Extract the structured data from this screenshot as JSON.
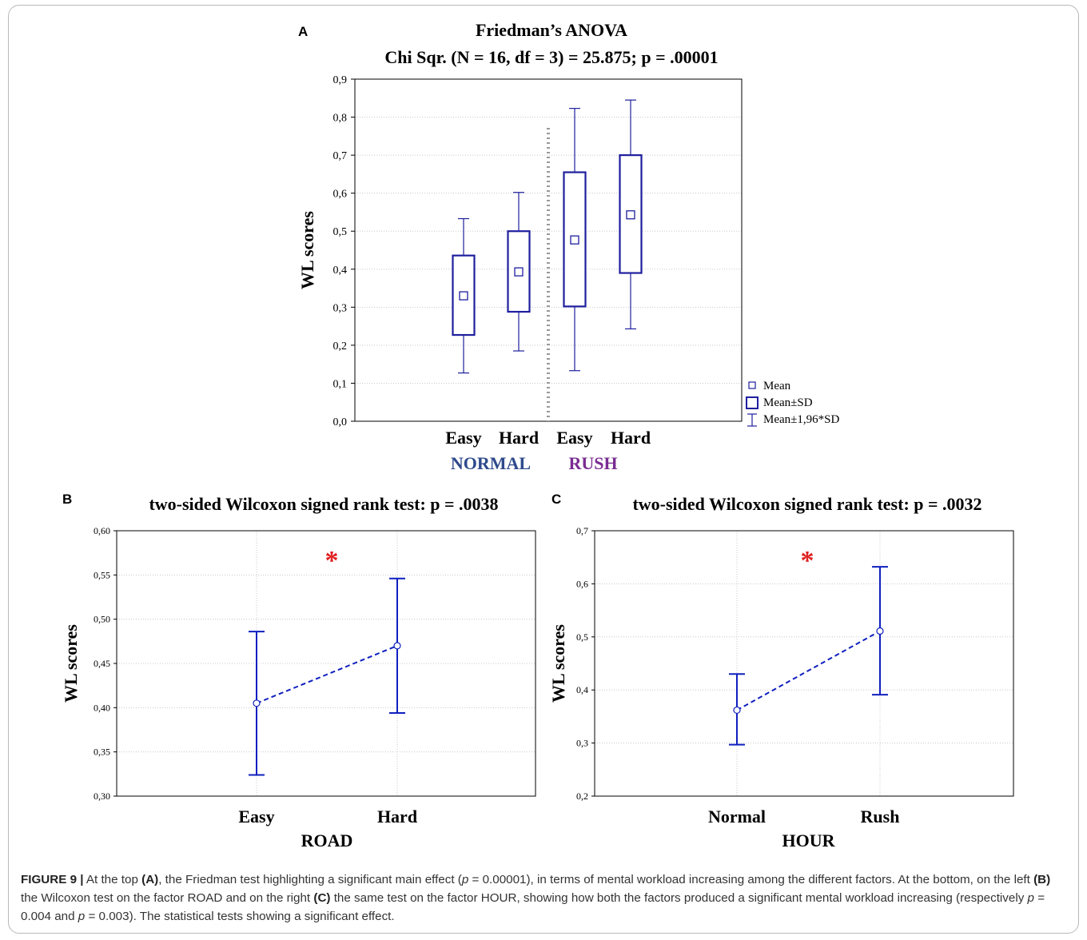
{
  "chart_data": [
    {
      "panel": "A",
      "type": "box",
      "title": "Friedman’s ANOVA",
      "subtitle": "Chi Sqr. (N = 16, df = 3) = 25.875; p = .00001",
      "ylabel": "WL scores",
      "ylim": [
        0.0,
        0.9
      ],
      "y_ticks": [
        "0,0",
        "0,1",
        "0,2",
        "0,3",
        "0,4",
        "0,5",
        "0,6",
        "0,7",
        "0,8",
        "0,9"
      ],
      "categories": [
        "Easy",
        "Hard",
        "Easy",
        "Hard"
      ],
      "groups": [
        {
          "label": "NORMAL",
          "color": "#2e4a8c"
        },
        {
          "label": "RUSH",
          "color": "#7a2c92"
        }
      ],
      "boxes": [
        {
          "mean": 0.33,
          "sd_low": 0.227,
          "sd_high": 0.436,
          "ci_low": 0.127,
          "ci_high": 0.533
        },
        {
          "mean": 0.393,
          "sd_low": 0.288,
          "sd_high": 0.5,
          "ci_low": 0.185,
          "ci_high": 0.602
        },
        {
          "mean": 0.477,
          "sd_low": 0.302,
          "sd_high": 0.655,
          "ci_low": 0.133,
          "ci_high": 0.823
        },
        {
          "mean": 0.543,
          "sd_low": 0.39,
          "sd_high": 0.7,
          "ci_low": 0.243,
          "ci_high": 0.845
        }
      ],
      "legend": [
        "Mean",
        "Mean±SD",
        "Mean±1,96*SD"
      ],
      "legend_placement": "bottom-right outside",
      "grid": true,
      "color": "#1f1f9e"
    },
    {
      "panel": "B",
      "type": "line",
      "title": "two-sided Wilcoxon signed rank test: p = .0038",
      "xlabel": "ROAD",
      "ylabel": "WL scores",
      "ylim": [
        0.3,
        0.6
      ],
      "y_ticks": [
        "0,30",
        "0,35",
        "0,40",
        "0,45",
        "0,50",
        "0,55",
        "0,60"
      ],
      "categories": [
        "Easy",
        "Hard"
      ],
      "values": [
        0.405,
        0.47
      ],
      "err_low": [
        0.324,
        0.394
      ],
      "err_high": [
        0.486,
        0.546
      ],
      "annotation": "*",
      "grid": true,
      "color": "#0f1fbf"
    },
    {
      "panel": "C",
      "type": "line",
      "title": "two-sided Wilcoxon signed rank test: p = .0032",
      "xlabel": "HOUR",
      "ylabel": "WL scores",
      "ylim": [
        0.2,
        0.7
      ],
      "y_ticks": [
        "0,2",
        "0,3",
        "0,4",
        "0,5",
        "0,6",
        "0,7"
      ],
      "categories": [
        "Normal",
        "Rush"
      ],
      "values": [
        0.362,
        0.511
      ],
      "err_low": [
        0.297,
        0.391
      ],
      "err_high": [
        0.43,
        0.632
      ],
      "annotation": "*",
      "grid": true,
      "color": "#0f1fbf"
    }
  ],
  "caption": {
    "lead": "FIGURE 9 |",
    "parts": [
      {
        "t": " At the top ",
        "s": "n"
      },
      {
        "t": "(A)",
        "s": "b"
      },
      {
        "t": ", the Friedman test highlighting a significant main effect (",
        "s": "n"
      },
      {
        "t": "p",
        "s": "i"
      },
      {
        "t": " = 0.00001), in terms of mental workload increasing among the different factors. At the bottom, on the left ",
        "s": "n"
      },
      {
        "t": "(B)",
        "s": "b"
      },
      {
        "t": " the Wilcoxon test on the factor ROAD and on the right ",
        "s": "n"
      },
      {
        "t": "(C)",
        "s": "b"
      },
      {
        "t": " the same test on the factor HOUR, showing how both the factors produced a significant mental workload increasing (respectively ",
        "s": "n"
      },
      {
        "t": "p",
        "s": "i"
      },
      {
        "t": " = 0.004 and ",
        "s": "n"
      },
      {
        "t": "p",
        "s": "i"
      },
      {
        "t": " = 0.003). The statistical tests showing a significant effect.",
        "s": "n"
      }
    ]
  }
}
